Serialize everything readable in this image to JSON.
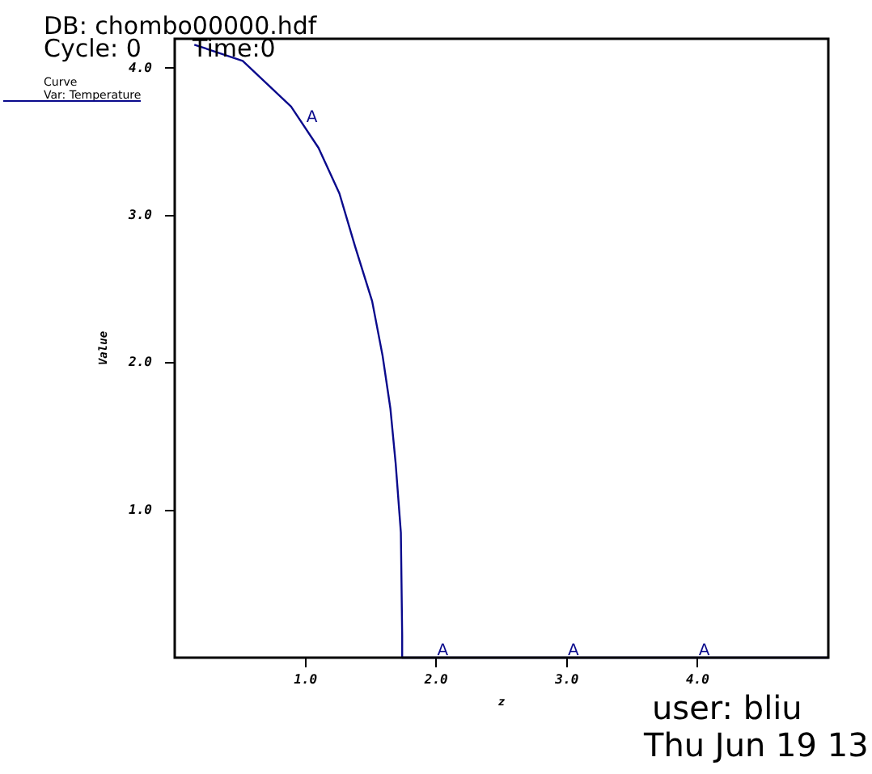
{
  "chart_data": {
    "type": "line",
    "xlabel": "z",
    "ylabel": "Value",
    "legend_title": "Curve",
    "legend": "top left",
    "series": [
      {
        "name": "Var: Temperature",
        "color": "#0a0a8c",
        "x": [
          0.15,
          0.52,
          0.89,
          1.1,
          1.26,
          1.38,
          1.51,
          1.59,
          1.65,
          1.69,
          1.73,
          1.74,
          1.74,
          5.0
        ],
        "values": [
          4.16,
          4.05,
          3.74,
          3.46,
          3.15,
          2.79,
          2.42,
          2.05,
          1.69,
          1.32,
          0.85,
          0.15,
          0,
          0
        ]
      }
    ],
    "xlim": [
      0,
      5
    ],
    "ylim": [
      0,
      4.2
    ],
    "xticks": [
      {
        "value": 1,
        "label": "1.0"
      },
      {
        "value": 2,
        "label": "2.0"
      },
      {
        "value": 3,
        "label": "3.0"
      },
      {
        "value": 4,
        "label": "4.0"
      }
    ],
    "yticks": [
      {
        "value": 1,
        "label": "1.0"
      },
      {
        "value": 2,
        "label": "2.0"
      },
      {
        "value": 3,
        "label": "3.0"
      },
      {
        "value": 4,
        "label": "4.0"
      }
    ],
    "grid": false,
    "marker": "none",
    "line_style": "solid",
    "annotations": [
      "DB: chombo00000.hdf",
      "Cycle: 0",
      "Time:0",
      "user: bliu",
      "Thu Jun 19 13",
      {
        "text": "A",
        "x": 1.05,
        "y": 3.62
      },
      {
        "text": "A",
        "x": 2.05,
        "y": 0
      },
      {
        "text": "A",
        "x": 3.05,
        "y": 0
      },
      {
        "text": "A",
        "x": 4.05,
        "y": 0
      }
    ]
  }
}
